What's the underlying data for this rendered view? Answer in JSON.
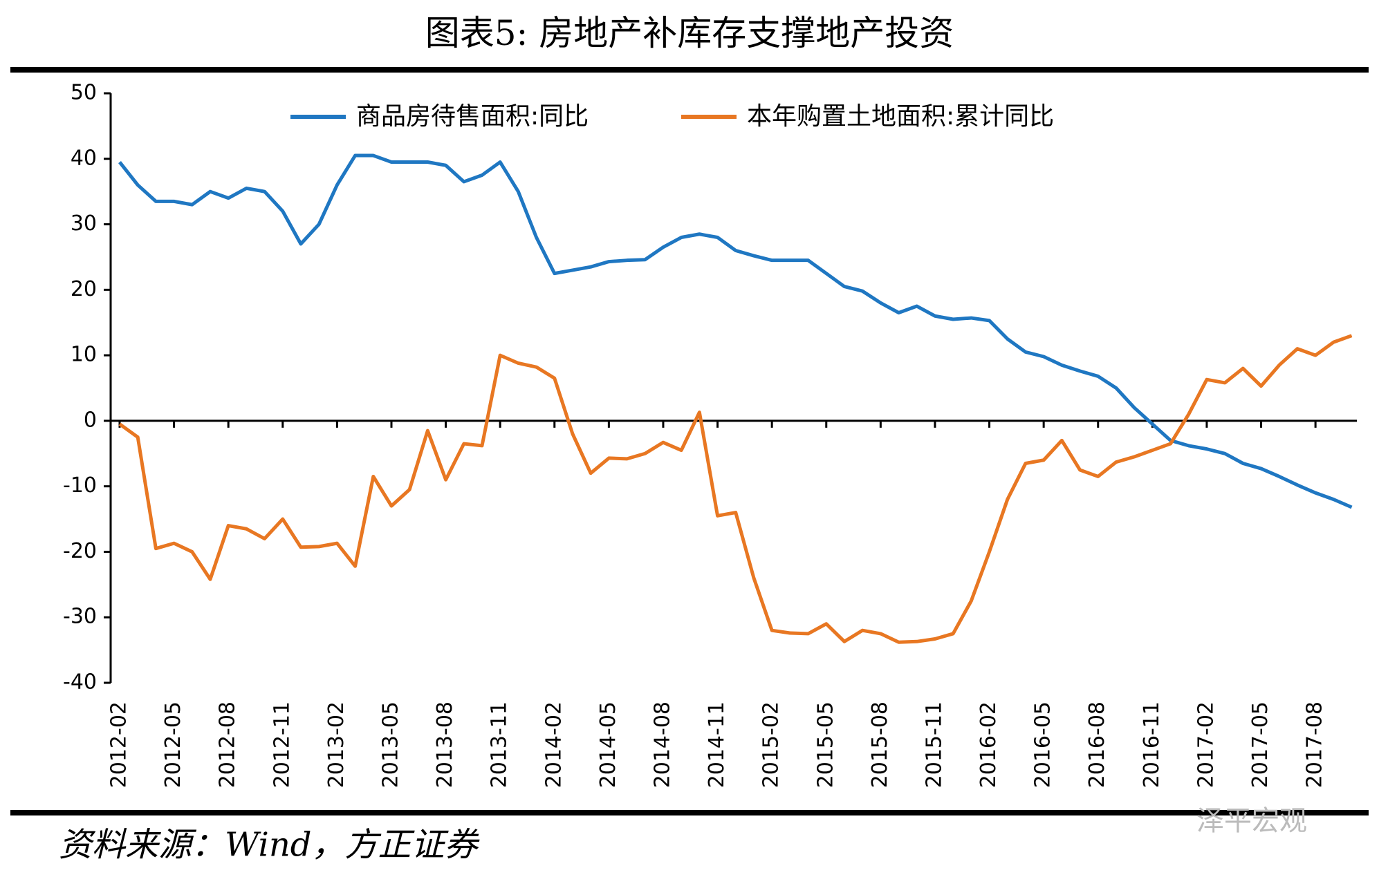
{
  "chart_data": {
    "type": "line",
    "title": "图表5:   房地产补库存支撑地产投资",
    "source": "资料来源：Wind，方正证券",
    "watermark": "泽平宏观",
    "categories": [
      "2012-02",
      null,
      null,
      "2012-05",
      null,
      null,
      "2012-08",
      null,
      null,
      "2012-11",
      null,
      null,
      "2013-02",
      null,
      null,
      "2013-05",
      null,
      null,
      "2013-08",
      null,
      null,
      "2013-11",
      null,
      null,
      "2014-02",
      null,
      null,
      "2014-05",
      null,
      null,
      "2014-08",
      null,
      null,
      "2014-11",
      null,
      null,
      "2015-02",
      null,
      null,
      "2015-05",
      null,
      null,
      "2015-08",
      null,
      null,
      "2015-11",
      null,
      null,
      "2016-02",
      null,
      null,
      "2016-05",
      null,
      null,
      "2016-08",
      null,
      null,
      "2016-11",
      null,
      null,
      "2017-02",
      null,
      null,
      "2017-05",
      null,
      null,
      "2017-08",
      null,
      null
    ],
    "series": [
      {
        "name": "商品房待售面积:同比",
        "color": "#1f77c2",
        "values": [
          39.5,
          36,
          33.5,
          33.5,
          33,
          35,
          34,
          35.5,
          35,
          32,
          27,
          30,
          36,
          40.5,
          40.5,
          39.5,
          39.5,
          39.5,
          39,
          36.5,
          37.5,
          39.5,
          35,
          28,
          22.5,
          23,
          23.5,
          24.3,
          24.5,
          24.6,
          26.5,
          28,
          28.5,
          28,
          26,
          25.2,
          24.5,
          24.5,
          24.5,
          22.5,
          20.5,
          19.8,
          18,
          16.5,
          17.5,
          16,
          15.5,
          15.7,
          15.3,
          12.5,
          10.5,
          9.8,
          8.5,
          7.6,
          6.8,
          5,
          2,
          -0.5,
          -3,
          -3.8,
          -4.3,
          -5,
          -6.5,
          -7.3,
          -8.5,
          -9.8,
          -11,
          -12,
          -13.2
        ]
      },
      {
        "name": "本年购置土地面积:累计同比",
        "color": "#e87722",
        "values": [
          -0.5,
          -2.5,
          -19.5,
          -18.7,
          -20,
          -24.2,
          -16,
          -16.5,
          -18,
          -15,
          -19.3,
          -19.2,
          -18.7,
          -22.2,
          -8.5,
          -13,
          -10.5,
          -1.5,
          -9,
          -3.5,
          -3.8,
          10,
          8.8,
          8.2,
          6.5,
          -2,
          -8,
          -5.7,
          -5.8,
          -5,
          -3.3,
          -4.5,
          1.3,
          -14.5,
          -14,
          -24,
          -32,
          -32.4,
          -32.5,
          -31,
          -33.7,
          -32,
          -32.5,
          -33.8,
          -33.7,
          -33.3,
          -32.5,
          -27.5,
          -20,
          -12,
          -6.5,
          -6,
          -3,
          -7.5,
          -8.5,
          -6.3,
          -5.5,
          -4.5,
          -3.5,
          1,
          6.3,
          5.8,
          8,
          5.3,
          8.5,
          11,
          10,
          12,
          13
        ]
      }
    ],
    "ylim": [
      -40,
      50
    ],
    "yticks": [
      -40,
      -30,
      -20,
      -10,
      0,
      10,
      20,
      30,
      40,
      50
    ]
  }
}
